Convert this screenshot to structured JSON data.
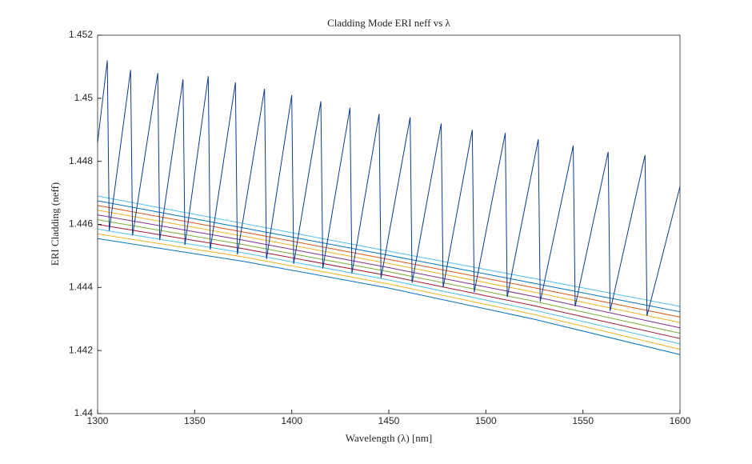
{
  "chart_data": {
    "type": "line",
    "title": "Cladding Mode ERI neff vs λ",
    "xlabel": "Wavelength (λ) [nm]",
    "ylabel": "ERI Cladding (neff)",
    "xlim": [
      1300,
      1600
    ],
    "xticks": [
      1300,
      1350,
      1400,
      1450,
      1500,
      1550,
      1600
    ],
    "ylim": [
      1.44,
      1.452
    ],
    "yticks": [
      1.44,
      1.442,
      1.444,
      1.446,
      1.448,
      1.45,
      1.452
    ],
    "grid": false,
    "series": [
      {
        "color": "#4DBEEE",
        "x": [
          1300,
          1375,
          1450,
          1525,
          1600
        ],
        "values": [
          1.4469,
          1.44603,
          1.44515,
          1.44428,
          1.4434
        ]
      },
      {
        "color": "#0072BD",
        "x": [
          1300,
          1375,
          1450,
          1525,
          1600
        ],
        "values": [
          1.44675,
          1.44589,
          1.44502,
          1.44413,
          1.44323
        ]
      },
      {
        "color": "#D95319",
        "x": [
          1300,
          1375,
          1450,
          1525,
          1600
        ],
        "values": [
          1.4466,
          1.44576,
          1.44489,
          1.44399,
          1.44306
        ]
      },
      {
        "color": "#EDB120",
        "x": [
          1300,
          1375,
          1450,
          1525,
          1600
        ],
        "values": [
          1.44645,
          1.44563,
          1.44476,
          1.44385,
          1.44289
        ]
      },
      {
        "color": "#7E2F8E",
        "x": [
          1300,
          1375,
          1450,
          1525,
          1600
        ],
        "values": [
          1.4463,
          1.4455,
          1.44463,
          1.44371,
          1.44272
        ]
      },
      {
        "color": "#77AC30",
        "x": [
          1300,
          1375,
          1450,
          1525,
          1600
        ],
        "values": [
          1.44615,
          1.44536,
          1.4445,
          1.44356,
          1.44255
        ]
      },
      {
        "color": "#A2142F",
        "x": [
          1300,
          1375,
          1450,
          1525,
          1600
        ],
        "values": [
          1.446,
          1.44523,
          1.44437,
          1.44342,
          1.44238
        ]
      },
      {
        "color": "#4DBEEE",
        "x": [
          1300,
          1375,
          1450,
          1525,
          1600
        ],
        "values": [
          1.44585,
          1.4451,
          1.44424,
          1.44328,
          1.44221
        ]
      },
      {
        "color": "#EDB120",
        "x": [
          1300,
          1375,
          1450,
          1525,
          1600
        ],
        "values": [
          1.4457,
          1.44497,
          1.44411,
          1.44314,
          1.44204
        ]
      },
      {
        "color": "#0072BD",
        "x": [
          1300,
          1375,
          1450,
          1525,
          1600
        ],
        "values": [
          1.44555,
          1.44483,
          1.44398,
          1.44299,
          1.44187
        ]
      },
      {
        "color": "#0E3A8A",
        "x": [
          1300,
          1305,
          1306,
          1317,
          1318,
          1331,
          1332,
          1344,
          1345,
          1357,
          1358,
          1371,
          1372,
          1386,
          1387,
          1400,
          1401,
          1415,
          1416,
          1430,
          1431,
          1445,
          1446,
          1461,
          1462,
          1477,
          1478,
          1493,
          1494,
          1510,
          1511,
          1527,
          1528,
          1545,
          1546,
          1563,
          1564,
          1582,
          1583,
          1600
        ],
        "values": [
          1.4486,
          1.4512,
          1.4458,
          1.4509,
          1.44565,
          1.4508,
          1.4455,
          1.4506,
          1.44535,
          1.4507,
          1.4452,
          1.4505,
          1.44505,
          1.4503,
          1.4449,
          1.4501,
          1.44475,
          1.4499,
          1.4446,
          1.4497,
          1.44445,
          1.4495,
          1.4443,
          1.4494,
          1.44415,
          1.4492,
          1.444,
          1.449,
          1.44385,
          1.4489,
          1.4437,
          1.4487,
          1.44355,
          1.4485,
          1.4434,
          1.4483,
          1.44325,
          1.4482,
          1.4431,
          1.4472
        ]
      }
    ]
  }
}
